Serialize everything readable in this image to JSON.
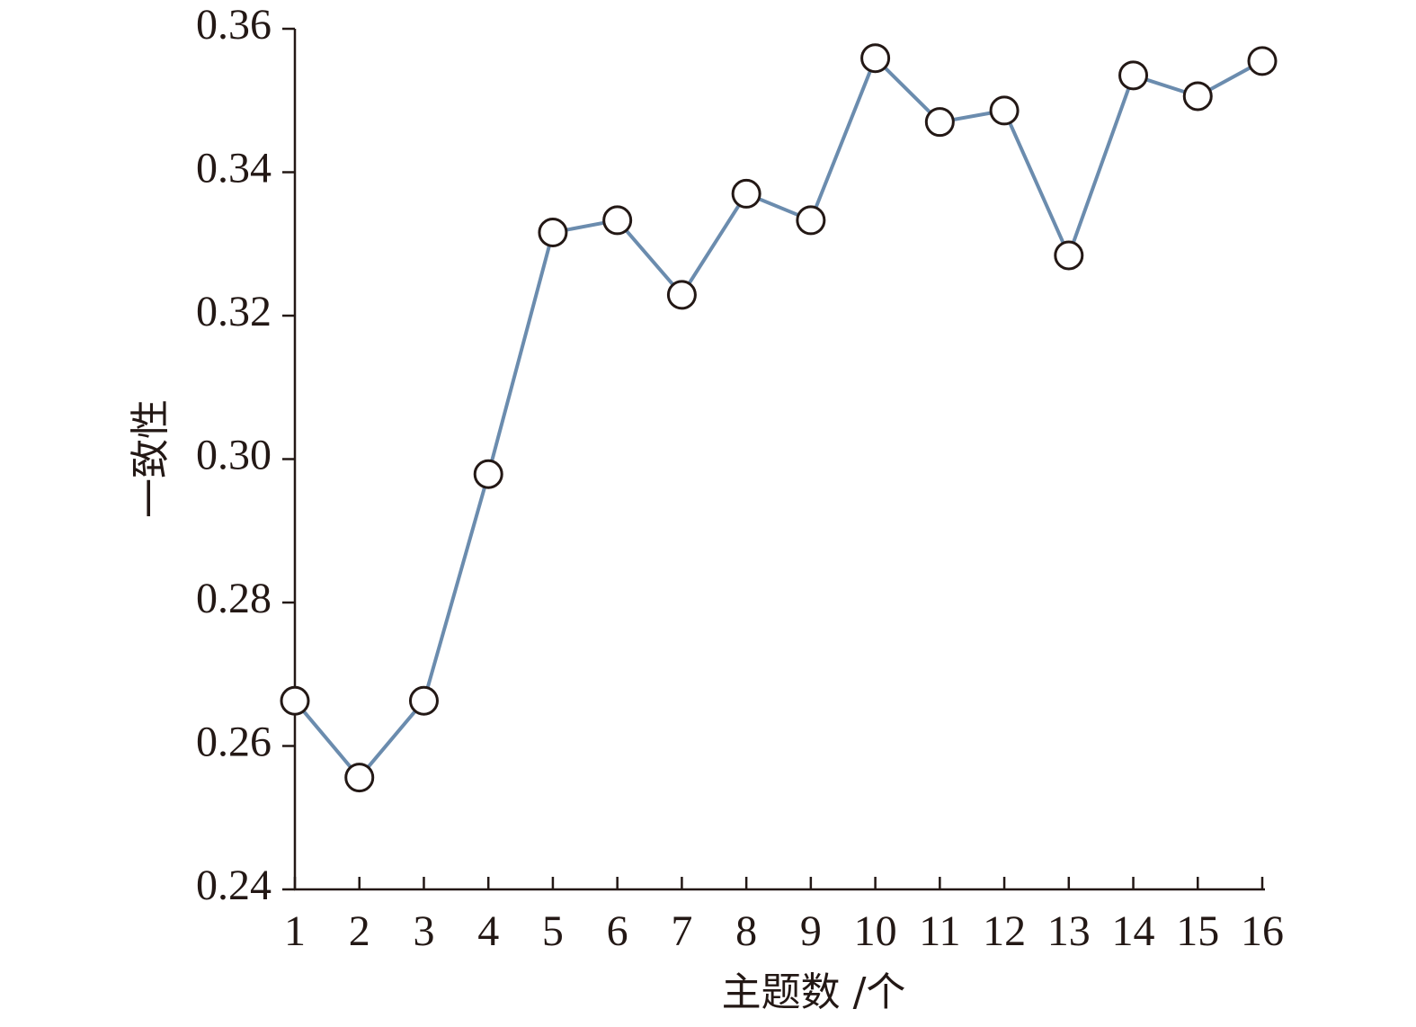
{
  "chart_data": {
    "type": "line",
    "xlabel": "主题数 /个",
    "ylabel": "一致性",
    "xlim": [
      1,
      16
    ],
    "ylim": [
      0.24,
      0.36
    ],
    "x_ticks": [
      1,
      2,
      3,
      4,
      5,
      6,
      7,
      8,
      9,
      10,
      11,
      12,
      13,
      14,
      15,
      16
    ],
    "y_ticks": [
      "0.24",
      "0.26",
      "0.28",
      "0.30",
      "0.32",
      "0.34",
      "0.36"
    ],
    "grid": false,
    "colors": {
      "line": "#6b8cae",
      "marker_fill": "#ffffff",
      "marker_stroke": "#231815",
      "axis": "#231815"
    },
    "series": [
      {
        "x": [
          1,
          2,
          3,
          4,
          5,
          6,
          7,
          8,
          9,
          10,
          11,
          12,
          13,
          14,
          15,
          16
        ],
        "values": [
          0.2663,
          0.2556,
          0.2663,
          0.2979,
          0.3316,
          0.3333,
          0.3229,
          0.337,
          0.3333,
          0.3559,
          0.347,
          0.3486,
          0.3284,
          0.3535,
          0.3506,
          0.3555
        ]
      }
    ]
  }
}
